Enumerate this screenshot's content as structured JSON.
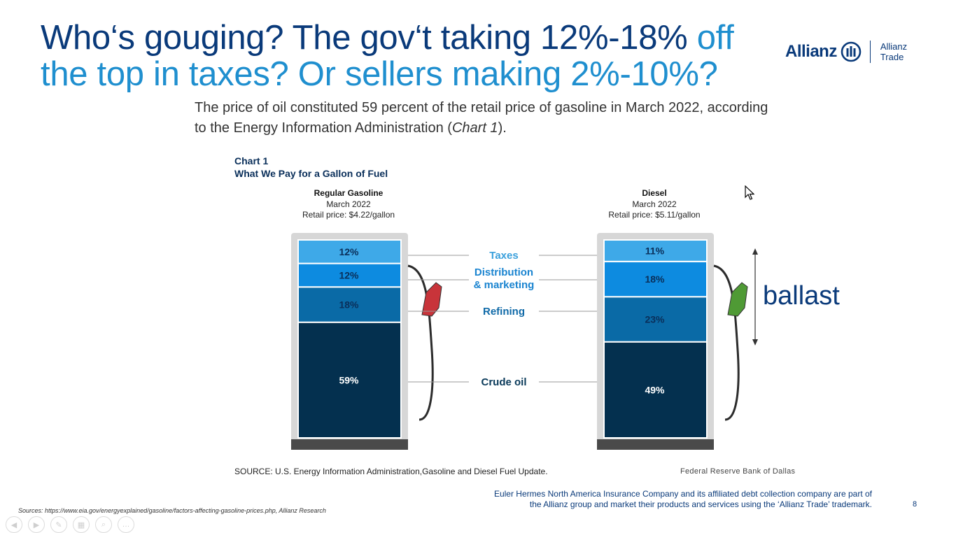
{
  "slide": {
    "title_part1": "Who‘s gouging? The gov‘t taking 12%-18% ",
    "title_part2": "off the top in taxes? Or sellers making 2%-10%?",
    "intro_part1": "The price of oil constituted 59 percent of the retail price of gasoline in March 2022, according to the Energy Information Administration (",
    "intro_italic": "Chart 1",
    "intro_part2": ").",
    "logo_word": "Allianz",
    "logo_sub_1": "Allianz",
    "logo_sub_2": "Trade",
    "annotation": "ballast",
    "footnote": "Sources: https://www.eia.gov/energyexplained/gasoline/factors-affecting-gasoline-prices.php, Allianz Research",
    "disclaimer": "Euler Hermes North America Insurance Company and its affiliated debt collection company are part of the Allianz group and market their products and services using the ‘Allianz Trade’ trademark.",
    "page_number": "8"
  },
  "chart_data": {
    "type": "bar",
    "chart_label": "Chart 1",
    "title": "What We Pay for a Gallon of Fuel",
    "source": "SOURCE: U.S. Energy Information Administration,Gasoline and Diesel Fuel Update.",
    "credit": "Federal Reserve Bank of Dallas",
    "categories": [
      "Crude oil",
      "Refining",
      "Distribution & marketing",
      "Taxes"
    ],
    "category_labels": [
      "Crude oil",
      "Refining",
      [
        "Distribution",
        "& marketing"
      ],
      "Taxes"
    ],
    "colors": {
      "Crude oil": "#04304f",
      "Refining": "#0a6aa6",
      "Distribution & marketing": "#0d8be0",
      "Taxes": "#3ea9e8"
    },
    "pump_frame": "#d7d7d7",
    "pump_base": "#4a4a4a",
    "label_colors": {
      "Taxes": "#3aa0dc",
      "Distribution & marketing": "#1a84d0",
      "Refining": "#106aa8",
      "Crude oil": "#0a3a5a"
    },
    "series": [
      {
        "name": "Regular Gasoline",
        "period": "March 2022",
        "retail": "Retail price: $4.22/gallon",
        "nozzle_color": "#c8343a",
        "values": [
          59,
          18,
          12,
          12
        ]
      },
      {
        "name": "Diesel",
        "period": "March 2022",
        "retail": "Retail price: $5.11/gallon",
        "nozzle_color": "#4f9a35",
        "values": [
          49,
          23,
          18,
          11
        ]
      }
    ]
  }
}
